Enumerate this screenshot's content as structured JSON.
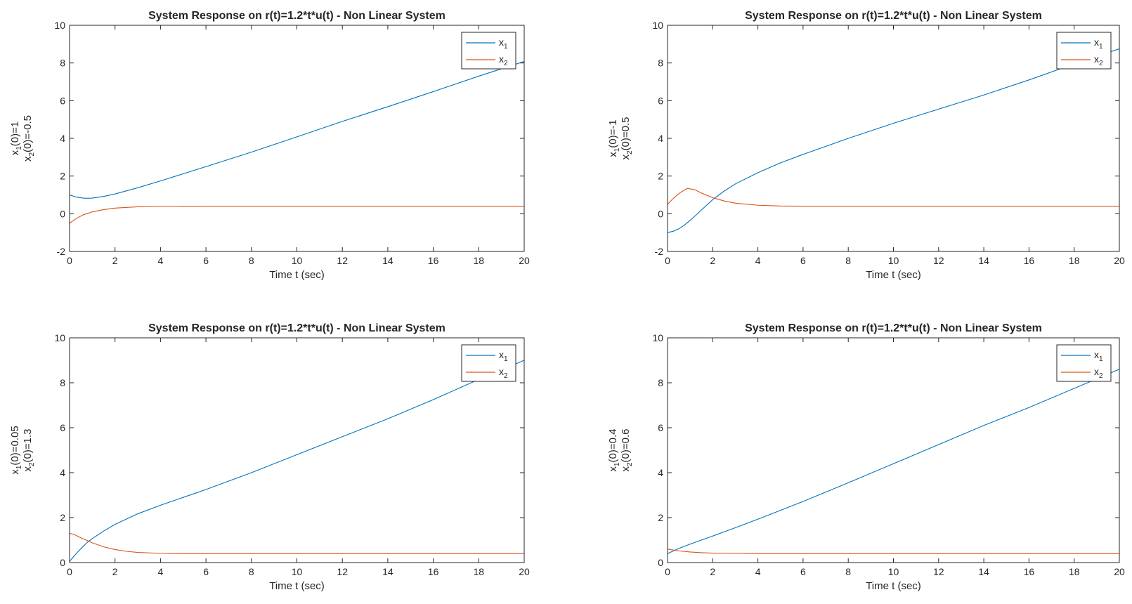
{
  "figure": {
    "colors": {
      "x1": "#0072BD",
      "x2": "#D95319",
      "axis": "#262626",
      "background": "#ffffff"
    }
  },
  "chart_data": [
    {
      "type": "line",
      "title": "System Response on r(t)=1.2*t*u(t) - Non Linear System",
      "xlabel": "Time t (sec)",
      "ylabel_lines": [
        "x1(0)=1",
        "x2(0)=-0.5"
      ],
      "ylabel_parts": [
        [
          "x",
          "1",
          "(0)=1"
        ],
        [
          "x",
          "2",
          "(0)=-0.5"
        ]
      ],
      "xlim": [
        0,
        20
      ],
      "ylim": [
        -2,
        10
      ],
      "xticks": [
        0,
        2,
        4,
        6,
        8,
        10,
        12,
        14,
        16,
        18,
        20
      ],
      "yticks": [
        -2,
        0,
        2,
        4,
        6,
        8,
        10
      ],
      "legend": {
        "placement": "top-right",
        "entries": [
          [
            "x",
            "1"
          ],
          [
            "x",
            "2"
          ]
        ]
      },
      "series": [
        {
          "name": "x1",
          "color": "#0072BD",
          "x": [
            0,
            0.3,
            0.6,
            0.8,
            1,
            1.5,
            2,
            3,
            4,
            6,
            8,
            10,
            12,
            14,
            16,
            18,
            20
          ],
          "y": [
            1.0,
            0.88,
            0.83,
            0.82,
            0.83,
            0.92,
            1.05,
            1.38,
            1.74,
            2.5,
            3.27,
            4.08,
            4.9,
            5.68,
            6.48,
            7.3,
            8.08
          ]
        },
        {
          "name": "x2",
          "color": "#D95319",
          "x": [
            0,
            0.3,
            0.6,
            1,
            1.5,
            2,
            3,
            4,
            6,
            10,
            20
          ],
          "y": [
            -0.5,
            -0.25,
            -0.06,
            0.1,
            0.22,
            0.3,
            0.37,
            0.39,
            0.4,
            0.4,
            0.4
          ]
        }
      ]
    },
    {
      "type": "line",
      "title": "System Response on r(t)=1.2*t*u(t) - Non Linear System",
      "xlabel": "Time t (sec)",
      "ylabel_lines": [
        "x1(0)=-1",
        "x2(0)=0.5"
      ],
      "ylabel_parts": [
        [
          "x",
          "1",
          "(0)=-1"
        ],
        [
          "x",
          "2",
          "(0)=0.5"
        ]
      ],
      "xlim": [
        0,
        20
      ],
      "ylim": [
        -2,
        10
      ],
      "xticks": [
        0,
        2,
        4,
        6,
        8,
        10,
        12,
        14,
        16,
        18,
        20
      ],
      "yticks": [
        -2,
        0,
        2,
        4,
        6,
        8,
        10
      ],
      "legend": {
        "placement": "top-right",
        "entries": [
          [
            "x",
            "1"
          ],
          [
            "x",
            "2"
          ]
        ]
      },
      "series": [
        {
          "name": "x1",
          "color": "#0072BD",
          "x": [
            0,
            0.25,
            0.5,
            0.75,
            1,
            1.25,
            1.5,
            2,
            2.5,
            3,
            4,
            5,
            6,
            8,
            10,
            12,
            14,
            16,
            18,
            20
          ],
          "y": [
            -1.0,
            -0.93,
            -0.8,
            -0.6,
            -0.35,
            -0.08,
            0.2,
            0.75,
            1.2,
            1.58,
            2.18,
            2.7,
            3.15,
            4.0,
            4.8,
            5.55,
            6.3,
            7.1,
            7.95,
            8.75
          ]
        },
        {
          "name": "x2",
          "color": "#D95319",
          "x": [
            0,
            0.2,
            0.4,
            0.6,
            0.8,
            0.9,
            1.0,
            1.2,
            1.5,
            2,
            2.5,
            3,
            4,
            5,
            6,
            8,
            10,
            20
          ],
          "y": [
            0.5,
            0.75,
            0.97,
            1.15,
            1.3,
            1.35,
            1.32,
            1.28,
            1.1,
            0.85,
            0.68,
            0.56,
            0.45,
            0.41,
            0.4,
            0.4,
            0.4,
            0.4
          ]
        }
      ]
    },
    {
      "type": "line",
      "title": "System Response on r(t)=1.2*t*u(t) - Non Linear System",
      "xlabel": "Time t (sec)",
      "ylabel_lines": [
        "x1(0)=0.05",
        "x2(0)=1.3"
      ],
      "ylabel_parts": [
        [
          "x",
          "1",
          "(0)=0.05"
        ],
        [
          "x",
          "2",
          "(0)=1.3"
        ]
      ],
      "xlim": [
        0,
        20
      ],
      "ylim": [
        0,
        10
      ],
      "xticks": [
        0,
        2,
        4,
        6,
        8,
        10,
        12,
        14,
        16,
        18,
        20
      ],
      "yticks": [
        0,
        2,
        4,
        6,
        8,
        10
      ],
      "legend": {
        "placement": "top-right",
        "entries": [
          [
            "x",
            "1"
          ],
          [
            "x",
            "2"
          ]
        ]
      },
      "series": [
        {
          "name": "x1",
          "color": "#0072BD",
          "x": [
            0,
            0.25,
            0.5,
            0.75,
            1,
            1.5,
            2,
            3,
            4,
            5,
            6,
            8,
            10,
            12,
            14,
            16,
            18,
            20
          ],
          "y": [
            0.05,
            0.35,
            0.62,
            0.87,
            1.07,
            1.4,
            1.7,
            2.17,
            2.55,
            2.9,
            3.25,
            4.0,
            4.8,
            5.6,
            6.4,
            7.25,
            8.15,
            9.0
          ]
        },
        {
          "name": "x2",
          "color": "#D95319",
          "x": [
            0,
            0.2,
            0.5,
            1,
            1.5,
            2,
            2.5,
            3,
            4,
            5,
            6,
            8,
            10,
            20
          ],
          "y": [
            1.3,
            1.25,
            1.1,
            0.88,
            0.7,
            0.58,
            0.5,
            0.45,
            0.41,
            0.4,
            0.4,
            0.4,
            0.4,
            0.4
          ]
        }
      ]
    },
    {
      "type": "line",
      "title": "System Response on r(t)=1.2*t*u(t) - Non Linear System",
      "xlabel": "Time t (sec)",
      "ylabel_lines": [
        "x1(0)=0.4",
        "x2(0)=0.6"
      ],
      "ylabel_parts": [
        [
          "x",
          "1",
          "(0)=0.4"
        ],
        [
          "x",
          "2",
          "(0)=0.6"
        ]
      ],
      "xlim": [
        0,
        20
      ],
      "ylim": [
        0,
        10
      ],
      "xticks": [
        0,
        2,
        4,
        6,
        8,
        10,
        12,
        14,
        16,
        18,
        20
      ],
      "yticks": [
        0,
        2,
        4,
        6,
        8,
        10
      ],
      "legend": {
        "placement": "top-right",
        "entries": [
          [
            "x",
            "1"
          ],
          [
            "x",
            "2"
          ]
        ]
      },
      "series": [
        {
          "name": "x1",
          "color": "#0072BD",
          "x": [
            0,
            0.5,
            1,
            1.5,
            2,
            3,
            4,
            6,
            8,
            10,
            12,
            14,
            16,
            18,
            20
          ],
          "y": [
            0.4,
            0.63,
            0.82,
            1.0,
            1.18,
            1.55,
            1.93,
            2.72,
            3.55,
            4.4,
            5.25,
            6.1,
            6.9,
            7.75,
            8.6
          ]
        },
        {
          "name": "x2",
          "color": "#D95319",
          "x": [
            0,
            0.5,
            1,
            1.5,
            2,
            3,
            4,
            6,
            10,
            20
          ],
          "y": [
            0.6,
            0.52,
            0.47,
            0.44,
            0.42,
            0.41,
            0.4,
            0.4,
            0.4,
            0.4
          ]
        }
      ]
    }
  ]
}
